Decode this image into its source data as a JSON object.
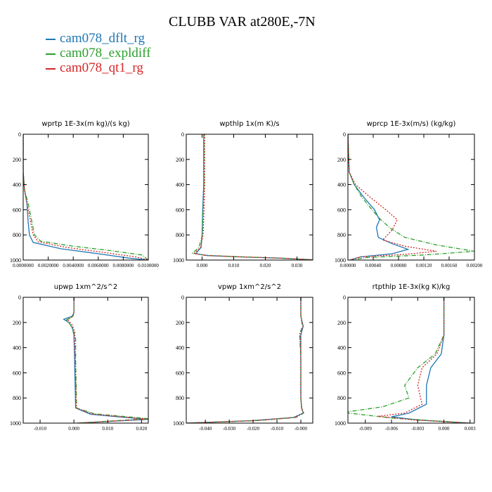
{
  "title": "CLUBB VAR at280E,-7N",
  "legend": [
    {
      "label": "cam078_dflt_rg",
      "color": "#1f77b4"
    },
    {
      "label": "cam078_expldiff",
      "color": "#2ca02c"
    },
    {
      "label": "cam078_qt1_rg",
      "color": "#d62728"
    }
  ],
  "chart_data": [
    {
      "type": "line",
      "title": "wprtp  1E-3x(m kg)/(s kg)",
      "xlim": [
        0,
        0.01
      ],
      "ylim": [
        1000,
        0
      ],
      "xticks": [
        0,
        0.002,
        0.004,
        0.006,
        0.008,
        0.01
      ],
      "xticklabels": [
        "0.0000000",
        "0.0020000",
        "0.0040000",
        "0.0060000",
        "0.0080000",
        "0.0100000"
      ],
      "yticks": [
        0,
        200,
        400,
        600,
        800,
        1000
      ],
      "series": [
        {
          "name": "cam078_dflt_rg",
          "x": [
            0,
            0,
            0.0001,
            0.0003,
            0.0004,
            0.0005,
            0.0008,
            0.003,
            0.006,
            0.0085,
            0.01
          ],
          "y": [
            0,
            300,
            440,
            550,
            700,
            800,
            860,
            910,
            950,
            985,
            1000
          ]
        },
        {
          "name": "cam078_expldiff",
          "x": [
            0,
            0,
            0.0001,
            0.0004,
            0.0007,
            0.0009,
            0.0014,
            0.004,
            0.007,
            0.0095,
            0.01
          ],
          "y": [
            0,
            300,
            440,
            550,
            700,
            800,
            850,
            890,
            925,
            960,
            1000
          ]
        },
        {
          "name": "cam078_qt1_rg",
          "x": [
            0,
            0,
            0.0001,
            0.0003,
            0.0006,
            0.0008,
            0.0012,
            0.0035,
            0.0065,
            0.009,
            0.01
          ],
          "y": [
            0,
            300,
            440,
            550,
            700,
            800,
            855,
            900,
            940,
            975,
            1000
          ]
        }
      ]
    },
    {
      "type": "line",
      "title": "wpthlp  1x(m K)/s",
      "xlim": [
        -0.005,
        0.035
      ],
      "ylim": [
        1000,
        0
      ],
      "xticks": [
        0,
        0.01,
        0.02,
        0.03
      ],
      "xticklabels": [
        "0.000",
        "0.010",
        "0.020",
        "0.030"
      ],
      "yticks": [
        0,
        200,
        400,
        600,
        800,
        1000
      ],
      "series": [
        {
          "name": "cam078_dflt_rg",
          "x": [
            0.0005,
            0.0005,
            0.0002,
            0,
            -0.0003,
            -0.002,
            0.002,
            0.012,
            0.025,
            0.035
          ],
          "y": [
            0,
            400,
            600,
            800,
            900,
            950,
            965,
            975,
            985,
            998
          ]
        },
        {
          "name": "cam078_expldiff",
          "x": [
            0.0006,
            0.0006,
            0.0003,
            0.0001,
            -0.001,
            -0.003,
            0.001,
            0.011,
            0.024,
            0.035
          ],
          "y": [
            0,
            400,
            600,
            800,
            900,
            945,
            962,
            973,
            984,
            998
          ]
        },
        {
          "name": "cam078_qt1_rg",
          "x": [
            0.0008,
            0.0008,
            0.0006,
            0.0003,
            -0.0005,
            -0.0025,
            0.0015,
            0.0115,
            0.0245,
            0.035
          ],
          "y": [
            0,
            400,
            600,
            800,
            900,
            948,
            964,
            974,
            985,
            998
          ]
        }
      ]
    },
    {
      "type": "line",
      "title": "wprcp  1E-3x(m/s) (kg/kg)",
      "xlim": [
        0,
        0.002
      ],
      "ylim": [
        1000,
        0
      ],
      "xticks": [
        0,
        0.0004,
        0.0008,
        0.0012,
        0.0016,
        0.002
      ],
      "xticklabels": [
        "0.00000",
        "0.00040",
        "0.00080",
        "0.00120",
        "0.00160",
        "0.00200"
      ],
      "yticks": [
        0,
        200,
        400,
        600,
        800,
        1000
      ],
      "series": [
        {
          "name": "cam078_dflt_rg",
          "x": [
            0,
            2e-05,
            0.0001,
            0.00025,
            0.00042,
            0.0005,
            0.00045,
            0.00048,
            0.0007,
            0.00095,
            0.0007,
            0.0002,
            3e-05
          ],
          "y": [
            0,
            300,
            400,
            500,
            600,
            680,
            740,
            820,
            870,
            915,
            950,
            975,
            1000
          ]
        },
        {
          "name": "cam078_expldiff",
          "x": [
            0,
            2e-05,
            0.0001,
            0.00022,
            0.00038,
            0.00052,
            0.00068,
            0.0009,
            0.0014,
            0.002,
            0.0012,
            0.0003,
            3e-05
          ],
          "y": [
            0,
            300,
            400,
            500,
            600,
            680,
            750,
            820,
            880,
            930,
            960,
            980,
            1000
          ]
        },
        {
          "name": "cam078_qt1_rg",
          "x": [
            0,
            2e-05,
            0.00012,
            0.00035,
            0.0006,
            0.00078,
            0.0007,
            0.00055,
            0.0009,
            0.0014,
            0.0009,
            0.0002,
            3e-05
          ],
          "y": [
            0,
            300,
            400,
            500,
            600,
            680,
            760,
            840,
            890,
            930,
            955,
            975,
            1000
          ]
        }
      ]
    },
    {
      "type": "line",
      "title": "upwp  1xm^2/s^2",
      "xlim": [
        -0.015,
        0.022
      ],
      "ylim": [
        1000,
        0
      ],
      "xticks": [
        -0.01,
        0,
        0.01,
        0.02
      ],
      "xticklabels": [
        "-0.010",
        "0.000",
        "0.010",
        "0.020"
      ],
      "yticks": [
        0,
        200,
        400,
        600,
        800,
        1000
      ],
      "series": [
        {
          "name": "cam078_dflt_rg",
          "x": [
            0,
            0,
            -0.0005,
            -0.003,
            -0.0015,
            -0.0005,
            0,
            0.0002,
            0.0005,
            0.005,
            0.015,
            0.022,
            0.001
          ],
          "y": [
            0,
            120,
            150,
            175,
            200,
            240,
            300,
            500,
            880,
            930,
            955,
            970,
            1000
          ]
        },
        {
          "name": "cam078_expldiff",
          "x": [
            0,
            0,
            -0.0003,
            -0.0022,
            -0.001,
            0,
            0.0005,
            0.0005,
            0.0008,
            0.006,
            0.016,
            0.022,
            0.001
          ],
          "y": [
            0,
            120,
            150,
            180,
            220,
            280,
            330,
            500,
            880,
            925,
            950,
            965,
            1000
          ]
        },
        {
          "name": "cam078_qt1_rg",
          "x": [
            0,
            0,
            -0.0003,
            -0.0018,
            -0.0005,
            0.0003,
            0.0002,
            0.0004,
            0.0007,
            0.0055,
            0.0155,
            0.022,
            0.001
          ],
          "y": [
            0,
            120,
            150,
            180,
            220,
            280,
            330,
            500,
            880,
            928,
            953,
            968,
            1000
          ]
        }
      ]
    },
    {
      "type": "line",
      "title": "vpwp  1xm^2/s^2",
      "xlim": [
        -0.048,
        0.005
      ],
      "ylim": [
        1000,
        0
      ],
      "xticks": [
        -0.04,
        -0.03,
        -0.02,
        -0.01,
        0
      ],
      "xticklabels": [
        "-0.040",
        "-0.030",
        "-0.020",
        "-0.010",
        "-0.000"
      ],
      "yticks": [
        0,
        200,
        400,
        600,
        800,
        1000
      ],
      "series": [
        {
          "name": "cam078_dflt_rg",
          "x": [
            0,
            0,
            0.001,
            0,
            0,
            0,
            0.0003,
            0.001,
            -0.003,
            -0.02,
            -0.048
          ],
          "y": [
            0,
            150,
            230,
            300,
            500,
            800,
            880,
            920,
            955,
            980,
            1000
          ]
        },
        {
          "name": "cam078_expldiff",
          "x": [
            0,
            0,
            0.0007,
            -0.0005,
            0,
            0,
            0.0003,
            0.0012,
            -0.002,
            -0.018,
            -0.048
          ],
          "y": [
            0,
            150,
            230,
            290,
            500,
            800,
            880,
            920,
            955,
            980,
            1000
          ]
        },
        {
          "name": "cam078_qt1_rg",
          "x": [
            0,
            0,
            0.0009,
            -0.0003,
            0,
            0,
            0.0004,
            0.0011,
            -0.0025,
            -0.019,
            -0.048
          ],
          "y": [
            0,
            150,
            230,
            290,
            500,
            800,
            880,
            920,
            955,
            980,
            1000
          ]
        }
      ]
    },
    {
      "type": "line",
      "title": "rtpthlp  1E-3x(kg K)/kg",
      "xlim": [
        -0.011,
        0.0035
      ],
      "ylim": [
        1000,
        0
      ],
      "xticks": [
        -0.009,
        -0.006,
        -0.003,
        0,
        0.003
      ],
      "xticklabels": [
        "-0.009",
        "-0.006",
        "-0.003",
        "0.000",
        "0.003"
      ],
      "yticks": [
        0,
        200,
        400,
        600,
        800,
        1000
      ],
      "series": [
        {
          "name": "cam078_dflt_rg",
          "x": [
            0,
            0,
            -0.0003,
            -0.0015,
            -0.002,
            -0.002,
            -0.004,
            -0.006,
            -0.003,
            0.003
          ],
          "y": [
            0,
            300,
            450,
            560,
            700,
            850,
            920,
            950,
            975,
            1000
          ]
        },
        {
          "name": "cam078_expldiff",
          "x": [
            0,
            0,
            -0.001,
            -0.003,
            -0.0045,
            -0.004,
            -0.007,
            -0.0115,
            -0.006,
            0.003
          ],
          "y": [
            0,
            300,
            450,
            560,
            700,
            800,
            870,
            915,
            960,
            1000
          ]
        },
        {
          "name": "cam078_qt1_rg",
          "x": [
            0,
            0,
            -0.0008,
            -0.0025,
            -0.003,
            -0.0025,
            -0.0045,
            -0.0075,
            -0.0035,
            0.003
          ],
          "y": [
            0,
            300,
            450,
            560,
            700,
            850,
            920,
            945,
            975,
            1000
          ]
        }
      ]
    }
  ]
}
